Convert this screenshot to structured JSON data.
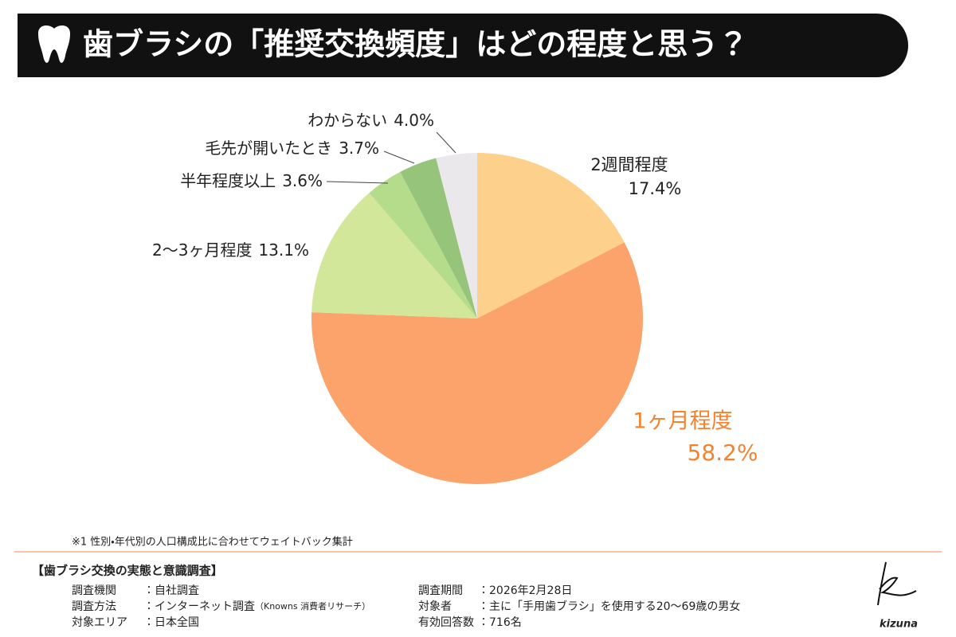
{
  "chart_data": {
    "type": "pie",
    "title": "歯ブラシの「推奨交換頻度」はどの程度と思う？",
    "categories": [
      "2週間程度",
      "1ヶ月程度",
      "2〜3ヶ月程度",
      "半年程度以上",
      "毛先が開いたとき",
      "わからない"
    ],
    "values": [
      17.4,
      58.2,
      13.1,
      3.6,
      3.7,
      4.0
    ],
    "value_labels": [
      "17.4%",
      "58.2%",
      "13.1%",
      "3.6%",
      "3.7%",
      "4.0%"
    ],
    "colors": [
      "#fdd08c",
      "#fca36b",
      "#d3e79a",
      "#b5dc8b",
      "#95c47a",
      "#ebe8ec"
    ],
    "footnote": "※1 性別・年代別の人口構成比に合わせてウェイトバック集計"
  },
  "survey": {
    "heading": "【歯ブラシ交換の実態と意識調査】",
    "rows": [
      {
        "label": "調査機関",
        "value": "：自社調査"
      },
      {
        "label": "調査方法",
        "value": "：インターネット調査",
        "note": "（Knowns 消費者リサーチ）"
      },
      {
        "label": "対象エリア",
        "value": "：日本全国"
      },
      {
        "label": "調査期間",
        "value": "：2026年2月28日"
      },
      {
        "label": "対象者",
        "value": "：主に「手用歯ブラシ」を使用する20〜69歳の男女"
      },
      {
        "label": "有効回答数",
        "value": "：716名"
      }
    ]
  },
  "logo": "kizuna"
}
